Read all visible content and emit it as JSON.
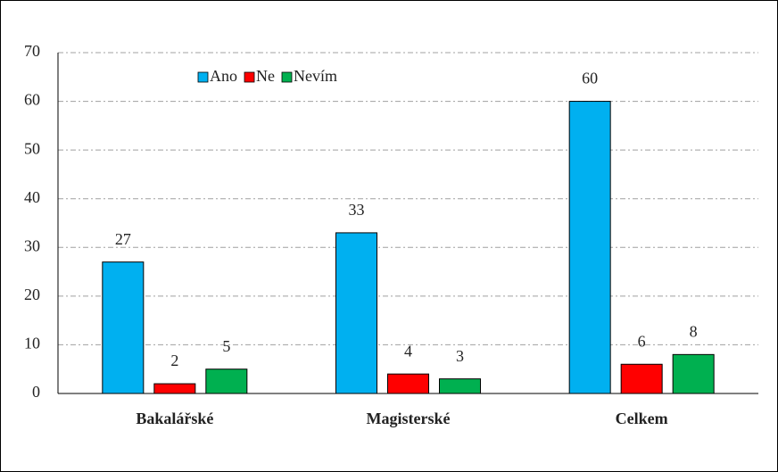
{
  "chart_data": {
    "type": "bar",
    "categories": [
      "Bakalářské",
      "Magisterské",
      "Celkem"
    ],
    "series": [
      {
        "name": "Ano",
        "color": "#00b0f0",
        "values": [
          27,
          33,
          60
        ]
      },
      {
        "name": "Ne",
        "color": "#ff0000",
        "values": [
          2,
          4,
          6
        ]
      },
      {
        "name": "Nevím",
        "color": "#00b050",
        "values": [
          5,
          3,
          8
        ]
      }
    ],
    "ylim": [
      0,
      70
    ],
    "yticks": [
      0,
      10,
      20,
      30,
      40,
      50,
      60,
      70
    ],
    "grid": true,
    "legend": "top"
  }
}
